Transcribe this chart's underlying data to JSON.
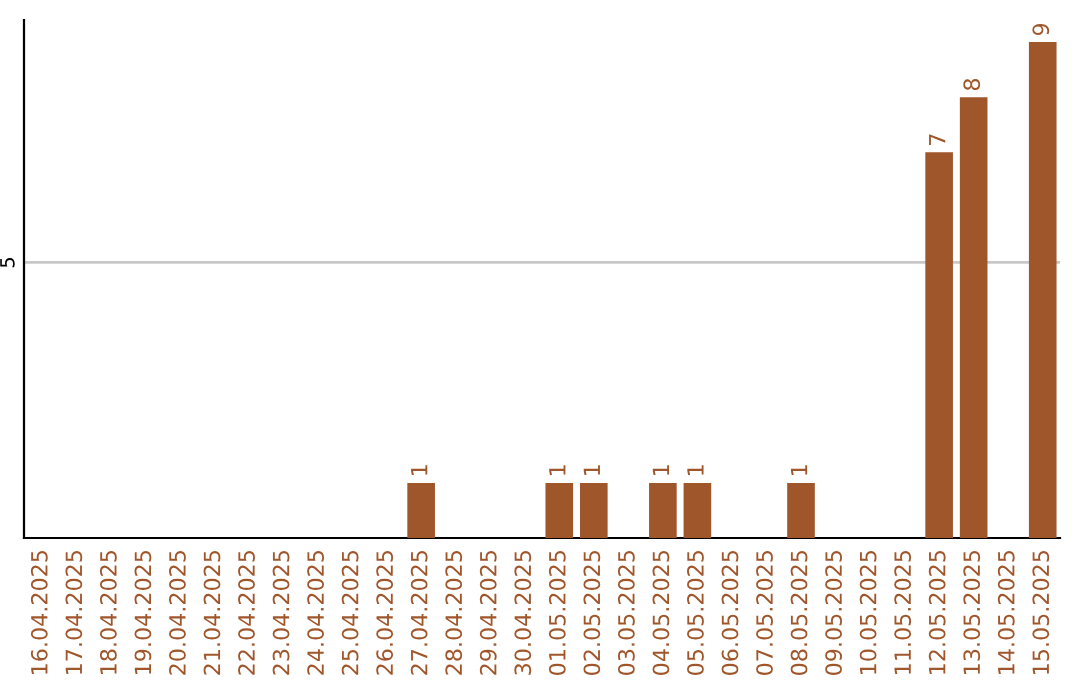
{
  "chart_data": {
    "type": "bar",
    "categories": [
      "16.04.2025",
      "17.04.2025",
      "18.04.2025",
      "19.04.2025",
      "20.04.2025",
      "21.04.2025",
      "22.04.2025",
      "23.04.2025",
      "24.04.2025",
      "25.04.2025",
      "26.04.2025",
      "27.04.2025",
      "28.04.2025",
      "29.04.2025",
      "30.04.2025",
      "01.05.2025",
      "02.05.2025",
      "03.05.2025",
      "04.05.2025",
      "05.05.2025",
      "06.05.2025",
      "07.05.2025",
      "08.05.2025",
      "09.05.2025",
      "10.05.2025",
      "11.05.2025",
      "12.05.2025",
      "13.05.2025",
      "14.05.2025",
      "15.05.2025"
    ],
    "values": [
      0,
      0,
      0,
      0,
      0,
      0,
      0,
      0,
      0,
      0,
      0,
      1,
      0,
      0,
      0,
      1,
      1,
      0,
      1,
      1,
      0,
      0,
      1,
      0,
      0,
      0,
      7,
      8,
      0,
      9
    ],
    "value_labels": [
      null,
      null,
      null,
      null,
      null,
      null,
      null,
      null,
      null,
      null,
      null,
      "1",
      null,
      null,
      null,
      "1",
      "1",
      null,
      "1",
      "1",
      null,
      null,
      "1",
      null,
      null,
      null,
      "7",
      "8",
      null,
      "9"
    ],
    "color": "#a0562b",
    "ylim": [
      0,
      9.4
    ],
    "yticks": [
      5
    ],
    "grid": "y"
  }
}
